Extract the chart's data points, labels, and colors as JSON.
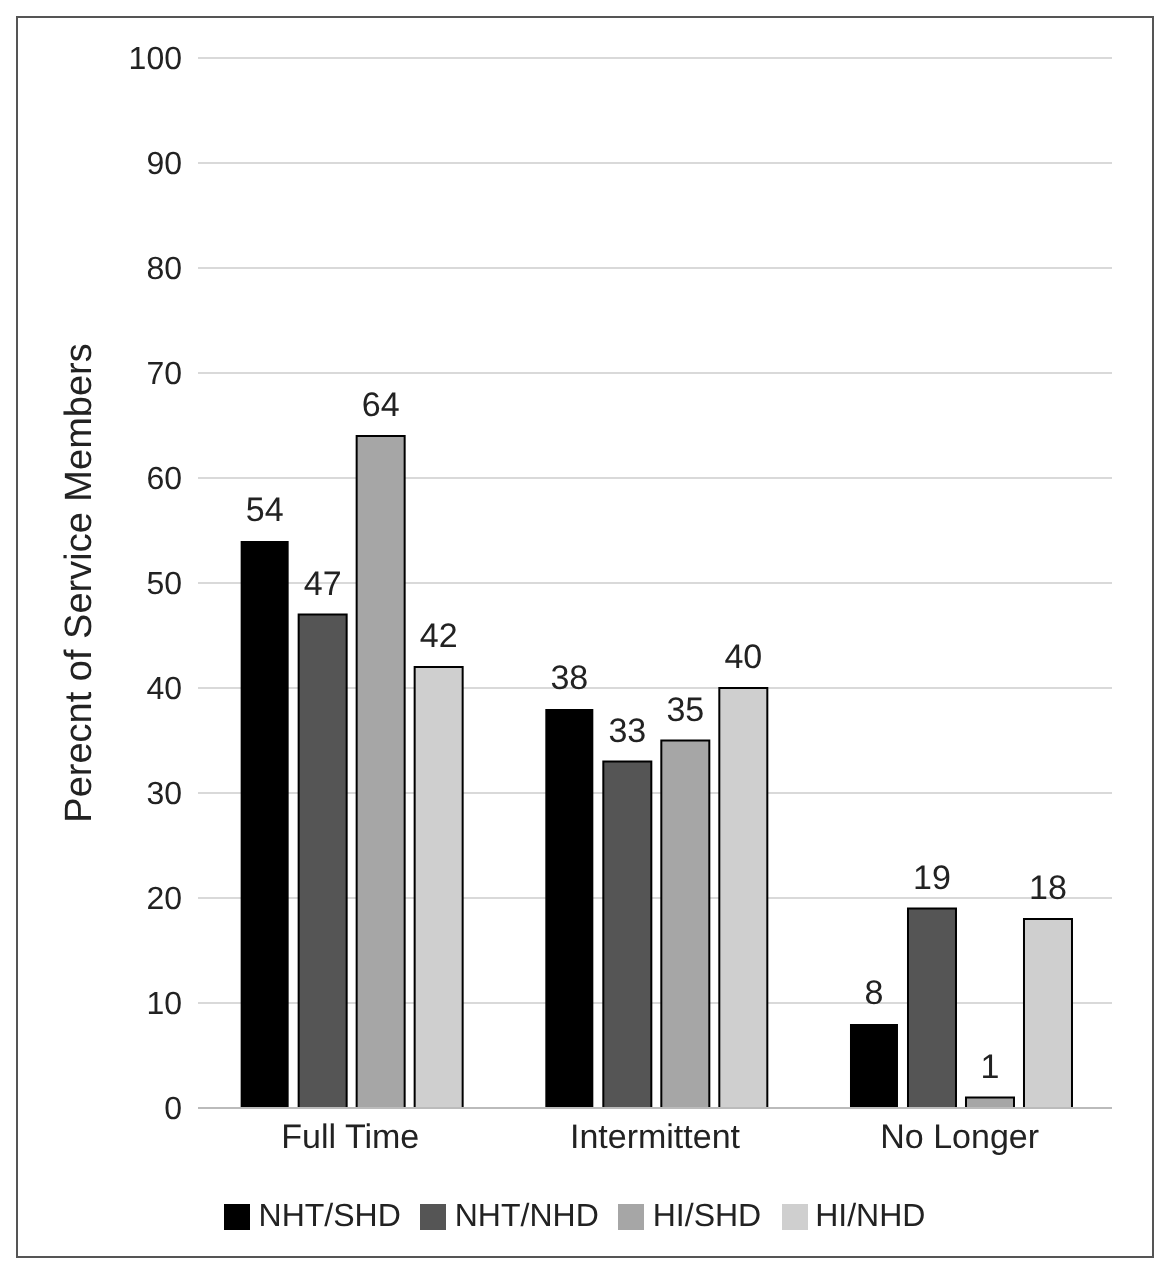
{
  "chart_data": {
    "type": "bar",
    "ylabel": "Perecnt of Service Members",
    "categories": [
      "Full Time",
      "Intermittent",
      "No Longer"
    ],
    "series": [
      {
        "name": "NHT/SHD",
        "color": "#000000",
        "values": [
          54,
          38,
          8
        ]
      },
      {
        "name": "NHT/NHD",
        "color": "#555555",
        "values": [
          47,
          33,
          19
        ]
      },
      {
        "name": "HI/SHD",
        "color": "#a6a6a6",
        "values": [
          64,
          35,
          1
        ]
      },
      {
        "name": "HI/NHD",
        "color": "#cfcfcf",
        "values": [
          42,
          40,
          18
        ]
      }
    ],
    "ylim": [
      0,
      100
    ],
    "yticks": [
      0,
      10,
      20,
      30,
      40,
      50,
      60,
      70,
      80,
      90,
      100
    ],
    "grid": "y",
    "legend": "bottom",
    "data_labels": true
  }
}
